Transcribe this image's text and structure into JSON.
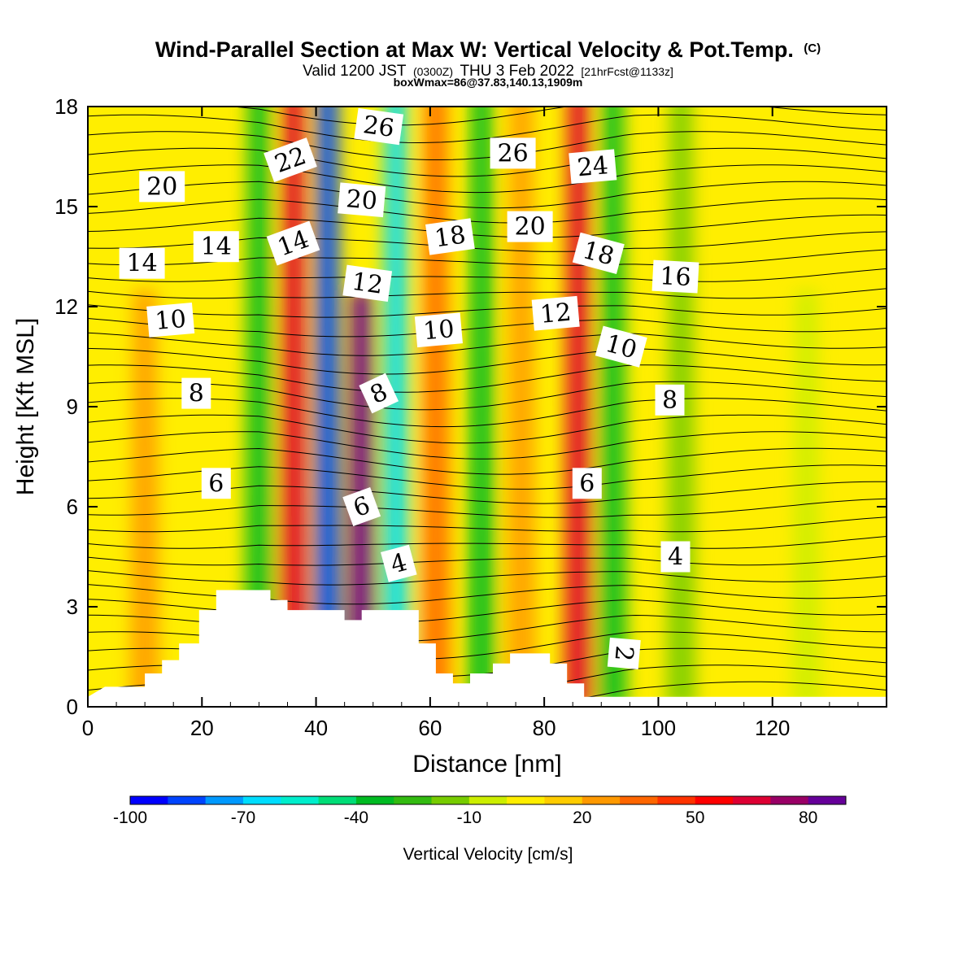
{
  "title": {
    "main": "Wind-Parallel Section at Max W: Vertical Velocity & Pot.Temp.",
    "main_suffix": "(C)",
    "line2_a": "Valid 1200 JST",
    "line2_b": "(0300Z)",
    "line2_c": "THU 3 Feb 2022",
    "line2_d": "[21hrFcst@1133z]",
    "line3": "boxWmax=86@37.83,140.13,1909m"
  },
  "chart_data": {
    "type": "heatmap",
    "xlabel": "Distance [nm]",
    "ylabel": "Height [Kft MSL]",
    "xlim": [
      0,
      140
    ],
    "ylim": [
      0,
      18
    ],
    "x_ticks": [
      "0",
      "20",
      "40",
      "60",
      "80",
      "100",
      "120"
    ],
    "y_ticks": [
      "0",
      "3",
      "6",
      "9",
      "12",
      "15",
      "18"
    ],
    "colorbar": {
      "title": "Vertical Velocity [cm/s]",
      "tick_labels": [
        "-100",
        "-70",
        "-40",
        "-10",
        "20",
        "50",
        "80"
      ],
      "colors": [
        "#0000ff",
        "#0044ff",
        "#0099ff",
        "#00ddff",
        "#00eecc",
        "#00dd77",
        "#00bb22",
        "#33bb11",
        "#77cc00",
        "#ccee00",
        "#ffee00",
        "#ffcc00",
        "#ff9900",
        "#ff6600",
        "#ff3300",
        "#ff0000",
        "#dd0033",
        "#990066",
        "#660099"
      ]
    },
    "vertical_velocity_features": [
      {
        "x": 10,
        "ztop": 12,
        "w": 20
      },
      {
        "x": 30,
        "ztop": 18,
        "w": -40
      },
      {
        "x": 36,
        "ztop": 18,
        "w": 60
      },
      {
        "x": 42,
        "ztop": 18,
        "w": -90
      },
      {
        "x": 48,
        "ztop": 12,
        "w": 86
      },
      {
        "x": 54,
        "ztop": 18,
        "w": -70
      },
      {
        "x": 61,
        "ztop": 18,
        "w": 30
      },
      {
        "x": 69,
        "ztop": 18,
        "w": -40
      },
      {
        "x": 76,
        "ztop": 18,
        "w": 25
      },
      {
        "x": 86,
        "ztop": 18,
        "w": 60
      },
      {
        "x": 92,
        "ztop": 18,
        "w": -40
      },
      {
        "x": 104,
        "ztop": 18,
        "w": -20
      },
      {
        "x": 126,
        "ztop": 12,
        "w": -10
      }
    ],
    "terrain": [
      {
        "x": 0,
        "h": 0.3
      },
      {
        "x": 3,
        "h": 0.6
      },
      {
        "x": 10,
        "h": 0.6
      },
      {
        "x": 10,
        "h": 1.0
      },
      {
        "x": 13,
        "h": 1.0
      },
      {
        "x": 13,
        "h": 1.4
      },
      {
        "x": 16,
        "h": 1.4
      },
      {
        "x": 16,
        "h": 1.9
      },
      {
        "x": 19.5,
        "h": 1.9
      },
      {
        "x": 19.5,
        "h": 2.9
      },
      {
        "x": 22.5,
        "h": 2.9
      },
      {
        "x": 22.5,
        "h": 3.5
      },
      {
        "x": 32,
        "h": 3.5
      },
      {
        "x": 32,
        "h": 3.2
      },
      {
        "x": 35,
        "h": 3.2
      },
      {
        "x": 35,
        "h": 2.9
      },
      {
        "x": 45,
        "h": 2.9
      },
      {
        "x": 45,
        "h": 2.6
      },
      {
        "x": 48,
        "h": 2.6
      },
      {
        "x": 48,
        "h": 2.9
      },
      {
        "x": 58,
        "h": 2.9
      },
      {
        "x": 58,
        "h": 1.9
      },
      {
        "x": 61,
        "h": 1.9
      },
      {
        "x": 61,
        "h": 1.0
      },
      {
        "x": 64,
        "h": 1.0
      },
      {
        "x": 64,
        "h": 0.7
      },
      {
        "x": 67,
        "h": 0.7
      },
      {
        "x": 67,
        "h": 1.0
      },
      {
        "x": 71,
        "h": 1.0
      },
      {
        "x": 71,
        "h": 1.3
      },
      {
        "x": 74,
        "h": 1.3
      },
      {
        "x": 74,
        "h": 1.6
      },
      {
        "x": 81,
        "h": 1.6
      },
      {
        "x": 81,
        "h": 1.3
      },
      {
        "x": 84,
        "h": 1.3
      },
      {
        "x": 84,
        "h": 0.7
      },
      {
        "x": 87,
        "h": 0.7
      },
      {
        "x": 87,
        "h": 0.3
      },
      {
        "x": 140,
        "h": 0.3
      }
    ],
    "potential_temperature_contours_C": [
      2,
      4,
      6,
      8,
      10,
      12,
      14,
      16,
      18,
      20,
      22,
      24,
      26
    ],
    "contour_labels": [
      {
        "text": "20",
        "x": 13,
        "y": 15.6,
        "rot": 0
      },
      {
        "text": "22",
        "x": 35.5,
        "y": 16.4,
        "rot": -20
      },
      {
        "text": "26",
        "x": 51,
        "y": 17.4,
        "rot": 8
      },
      {
        "text": "26",
        "x": 74.5,
        "y": 16.6,
        "rot": 0
      },
      {
        "text": "24",
        "x": 88.5,
        "y": 16.2,
        "rot": -5
      },
      {
        "text": "20",
        "x": 48,
        "y": 15.2,
        "rot": 5
      },
      {
        "text": "14",
        "x": 9.5,
        "y": 13.3,
        "rot": 0
      },
      {
        "text": "14",
        "x": 22.5,
        "y": 13.8,
        "rot": 0
      },
      {
        "text": "14",
        "x": 36,
        "y": 13.9,
        "rot": -20
      },
      {
        "text": "18",
        "x": 63.5,
        "y": 14.1,
        "rot": -8
      },
      {
        "text": "20",
        "x": 77.5,
        "y": 14.4,
        "rot": 0
      },
      {
        "text": "18",
        "x": 89.5,
        "y": 13.6,
        "rot": 15
      },
      {
        "text": "16",
        "x": 103,
        "y": 12.9,
        "rot": 3
      },
      {
        "text": "12",
        "x": 49,
        "y": 12.7,
        "rot": 8
      },
      {
        "text": "10",
        "x": 14.5,
        "y": 11.6,
        "rot": -5
      },
      {
        "text": "10",
        "x": 61.5,
        "y": 11.3,
        "rot": -5
      },
      {
        "text": "12",
        "x": 82,
        "y": 11.8,
        "rot": -5
      },
      {
        "text": "10",
        "x": 93.5,
        "y": 10.8,
        "rot": 15
      },
      {
        "text": "8",
        "x": 19,
        "y": 9.4,
        "rot": 0
      },
      {
        "text": "8",
        "x": 51,
        "y": 9.4,
        "rot": -25
      },
      {
        "text": "8",
        "x": 102,
        "y": 9.2,
        "rot": 0
      },
      {
        "text": "6",
        "x": 22.5,
        "y": 6.7,
        "rot": 0
      },
      {
        "text": "6",
        "x": 48,
        "y": 6.0,
        "rot": -20
      },
      {
        "text": "6",
        "x": 87.5,
        "y": 6.7,
        "rot": 0
      },
      {
        "text": "4",
        "x": 54.5,
        "y": 4.3,
        "rot": -15
      },
      {
        "text": "4",
        "x": 103,
        "y": 4.5,
        "rot": 0
      },
      {
        "text": "2",
        "x": 94,
        "y": 1.6,
        "rot": 95
      }
    ]
  }
}
